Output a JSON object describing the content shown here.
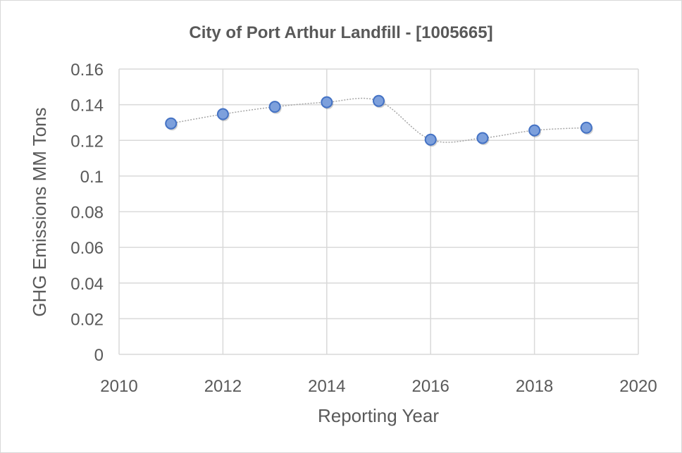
{
  "chart_data": {
    "type": "scatter",
    "title": "City of Port Arthur Landfill - [1005665]",
    "xlabel": "Reporting Year",
    "ylabel": "GHG Emissions MM Tons",
    "xlim": [
      2010,
      2020
    ],
    "ylim": [
      0,
      0.16
    ],
    "x_ticks": [
      "2010",
      "2012",
      "2014",
      "2016",
      "2018",
      "2020"
    ],
    "y_ticks": [
      "0",
      "0.02",
      "0.04",
      "0.06",
      "0.08",
      "0.1",
      "0.12",
      "0.14",
      "0.16"
    ],
    "grid": true,
    "legend": "none",
    "smooth_line": true,
    "marker_color": "#7da0dc",
    "marker_edge_color": "#4472c4",
    "line_color": "#a6a6a6",
    "series": [
      {
        "x": [
          2011,
          2012,
          2013,
          2014,
          2015,
          2016,
          2017,
          2018,
          2019
        ],
        "y": [
          0.1295,
          0.1347,
          0.1388,
          0.1414,
          0.1421,
          0.1204,
          0.1213,
          0.1256,
          0.1271
        ]
      }
    ]
  }
}
